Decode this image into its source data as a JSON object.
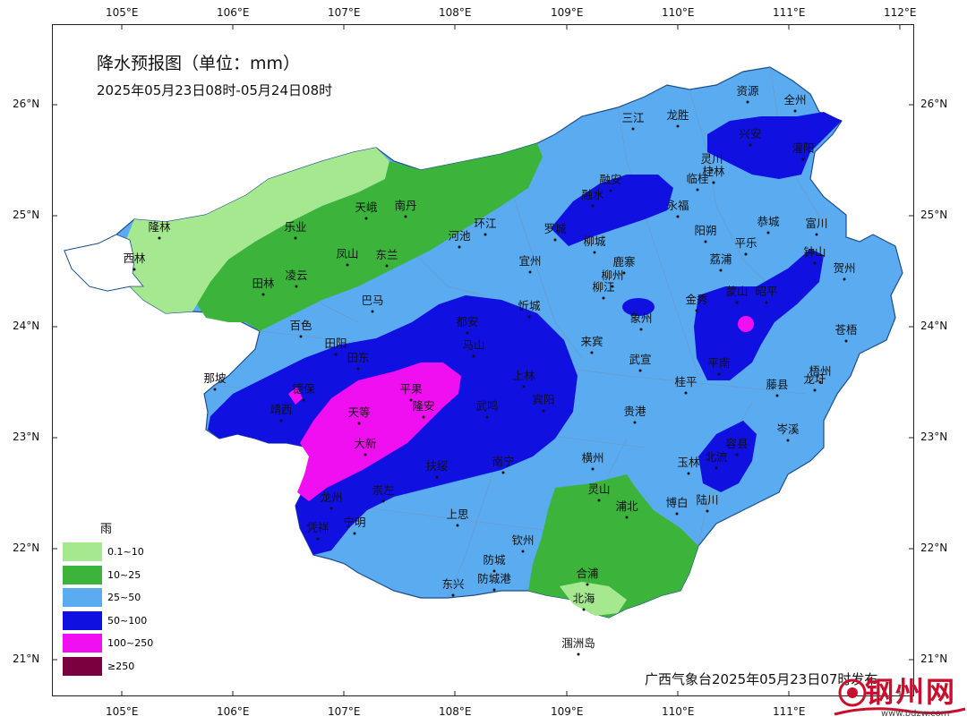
{
  "title": "降水预报图（单位：mm）",
  "subtitle": "2025年05月23日08时-05月24日08时",
  "footer": "广西气象台2025年05月23日07时发布",
  "watermark": {
    "text": "钢州网",
    "url": "www.bdzw.com"
  },
  "axes": {
    "lon_labels": [
      "105°E",
      "106°E",
      "107°E",
      "108°E",
      "109°E",
      "110°E",
      "111°E",
      "112°E"
    ],
    "lat_labels": [
      "26°N",
      "25°N",
      "24°N",
      "23°N",
      "22°N",
      "21°N"
    ]
  },
  "legend": {
    "title": "雨",
    "items": [
      {
        "label": "0.1~10",
        "color": "#a6e88f"
      },
      {
        "label": "10~25",
        "color": "#3cb43c"
      },
      {
        "label": "25~50",
        "color": "#5aabef"
      },
      {
        "label": "50~100",
        "color": "#1010e0"
      },
      {
        "label": "100~250",
        "color": "#f00ff0"
      },
      {
        "label": "≥250",
        "color": "#7a0040"
      }
    ]
  },
  "cities": [
    {
      "name": "资源"
    },
    {
      "name": "全州"
    },
    {
      "name": "三江"
    },
    {
      "name": "龙胜"
    },
    {
      "name": "兴安"
    },
    {
      "name": "灌阳"
    },
    {
      "name": "灵川"
    },
    {
      "name": "桂林"
    },
    {
      "name": "临桂"
    },
    {
      "name": "融安"
    },
    {
      "name": "融水"
    },
    {
      "name": "永福"
    },
    {
      "name": "阳朔"
    },
    {
      "name": "恭城"
    },
    {
      "name": "富川"
    },
    {
      "name": "平乐"
    },
    {
      "name": "钟山"
    },
    {
      "name": "荔浦"
    },
    {
      "name": "贺州"
    },
    {
      "name": "罗城"
    },
    {
      "name": "柳城"
    },
    {
      "name": "隆林"
    },
    {
      "name": "西林"
    },
    {
      "name": "乐业"
    },
    {
      "name": "天峨"
    },
    {
      "name": "南丹"
    },
    {
      "name": "环江"
    },
    {
      "name": "河池"
    },
    {
      "name": "凤山"
    },
    {
      "name": "东兰"
    },
    {
      "name": "宜州"
    },
    {
      "name": "柳州"
    },
    {
      "name": "柳江"
    },
    {
      "name": "鹿寨"
    },
    {
      "name": "田林"
    },
    {
      "name": "凌云"
    },
    {
      "name": "巴马"
    },
    {
      "name": "金秀"
    },
    {
      "name": "蒙山"
    },
    {
      "name": "昭平"
    },
    {
      "name": "忻城"
    },
    {
      "name": "象州"
    },
    {
      "name": "百色"
    },
    {
      "name": "都安"
    },
    {
      "name": "马山"
    },
    {
      "name": "来宾"
    },
    {
      "name": "苍梧"
    },
    {
      "name": "田阳"
    },
    {
      "name": "田东"
    },
    {
      "name": "武宣"
    },
    {
      "name": "平南"
    },
    {
      "name": "桂平"
    },
    {
      "name": "藤县"
    },
    {
      "name": "梧州"
    },
    {
      "name": "龙圩"
    },
    {
      "name": "那坡"
    },
    {
      "name": "德保"
    },
    {
      "name": "靖西"
    },
    {
      "name": "平果"
    },
    {
      "name": "上林"
    },
    {
      "name": "宾阳"
    },
    {
      "name": "天等"
    },
    {
      "name": "隆安"
    },
    {
      "name": "武鸣"
    },
    {
      "name": "贵港"
    },
    {
      "name": "岑溪"
    },
    {
      "name": "大新"
    },
    {
      "name": "扶绥"
    },
    {
      "name": "南宁"
    },
    {
      "name": "横州"
    },
    {
      "name": "玉林"
    },
    {
      "name": "北流"
    },
    {
      "name": "容县"
    },
    {
      "name": "龙州"
    },
    {
      "name": "崇左"
    },
    {
      "name": "灵山"
    },
    {
      "name": "浦北"
    },
    {
      "name": "博白"
    },
    {
      "name": "陆川"
    },
    {
      "name": "凭祥"
    },
    {
      "name": "宁明"
    },
    {
      "name": "上思"
    },
    {
      "name": "钦州"
    },
    {
      "name": "防城"
    },
    {
      "name": "合浦"
    },
    {
      "name": "东兴"
    },
    {
      "name": "防城港"
    },
    {
      "name": "北海"
    },
    {
      "name": "涠洲岛"
    }
  ]
}
